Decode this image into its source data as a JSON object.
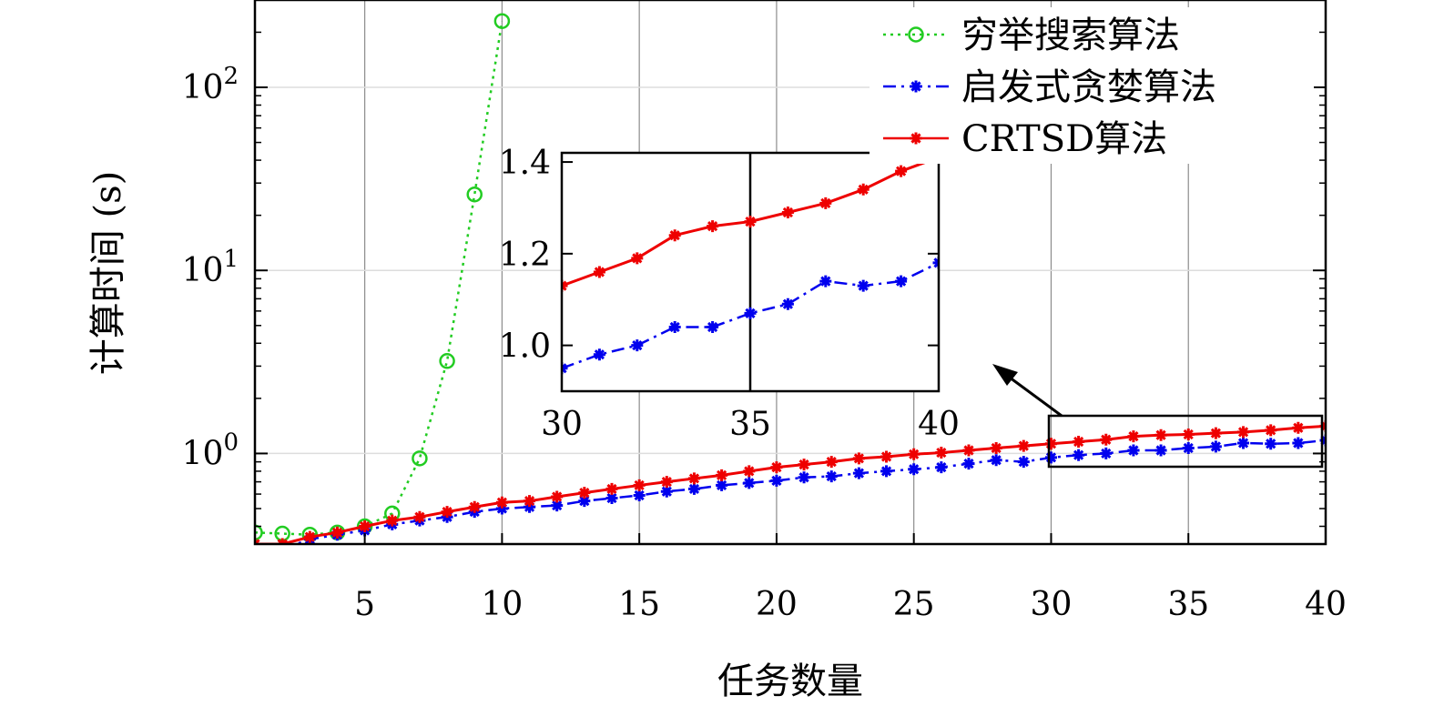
{
  "chart_data": {
    "type": "line",
    "xlabel": "任务数量",
    "ylabel": "计算时间 (s)",
    "yscale": "log",
    "xlim": [
      1,
      40
    ],
    "ylim": [
      0.32,
      300
    ],
    "xticks": [
      "5",
      "10",
      "15",
      "20",
      "25",
      "30",
      "35",
      "40"
    ],
    "yticks": [
      {
        "base": "10",
        "exp": "0",
        "value": 1
      },
      {
        "base": "10",
        "exp": "1",
        "value": 10
      },
      {
        "base": "10",
        "exp": "2",
        "value": 100
      }
    ],
    "grid": true,
    "legend_position": "top-right",
    "x": [
      1,
      2,
      3,
      4,
      5,
      6,
      7,
      8,
      9,
      10,
      11,
      12,
      13,
      14,
      15,
      16,
      17,
      18,
      19,
      20,
      21,
      22,
      23,
      24,
      25,
      26,
      27,
      28,
      29,
      30,
      31,
      32,
      33,
      34,
      35,
      36,
      37,
      38,
      39,
      40
    ],
    "series": [
      {
        "name": "穷举搜索算法",
        "color": "#22cc22",
        "style": "dotted",
        "marker": "circle",
        "x": [
          1,
          2,
          3,
          4,
          5,
          6,
          7,
          8,
          9,
          10
        ],
        "values": [
          0.37,
          0.365,
          0.36,
          0.37,
          0.4,
          0.47,
          0.94,
          3.2,
          26,
          230
        ]
      },
      {
        "name": "启发式贪婪算法",
        "color": "#0000ee",
        "style": "dashdot",
        "marker": "asterisk",
        "values": [
          0.3,
          0.3,
          0.34,
          0.36,
          0.38,
          0.41,
          0.43,
          0.45,
          0.48,
          0.5,
          0.51,
          0.52,
          0.55,
          0.57,
          0.59,
          0.62,
          0.64,
          0.67,
          0.69,
          0.71,
          0.74,
          0.75,
          0.78,
          0.8,
          0.82,
          0.84,
          0.88,
          0.92,
          0.9,
          0.95,
          0.98,
          1.0,
          1.04,
          1.04,
          1.07,
          1.09,
          1.14,
          1.13,
          1.14,
          1.18
        ]
      },
      {
        "name": "CRTSD算法",
        "color": "#ee0000",
        "style": "solid",
        "marker": "asterisk",
        "values": [
          0.32,
          0.32,
          0.35,
          0.37,
          0.4,
          0.43,
          0.45,
          0.48,
          0.51,
          0.54,
          0.55,
          0.58,
          0.61,
          0.64,
          0.67,
          0.7,
          0.73,
          0.76,
          0.8,
          0.84,
          0.87,
          0.9,
          0.94,
          0.96,
          0.99,
          1.01,
          1.04,
          1.07,
          1.1,
          1.13,
          1.16,
          1.19,
          1.24,
          1.26,
          1.27,
          1.29,
          1.31,
          1.34,
          1.38,
          1.41
        ]
      }
    ],
    "inset": {
      "xlim": [
        30,
        40
      ],
      "ylim": [
        0.9,
        1.42
      ],
      "xticks": [
        "30",
        "35",
        "40"
      ],
      "yticks": [
        "1.0",
        "1.2",
        "1.4"
      ]
    }
  }
}
